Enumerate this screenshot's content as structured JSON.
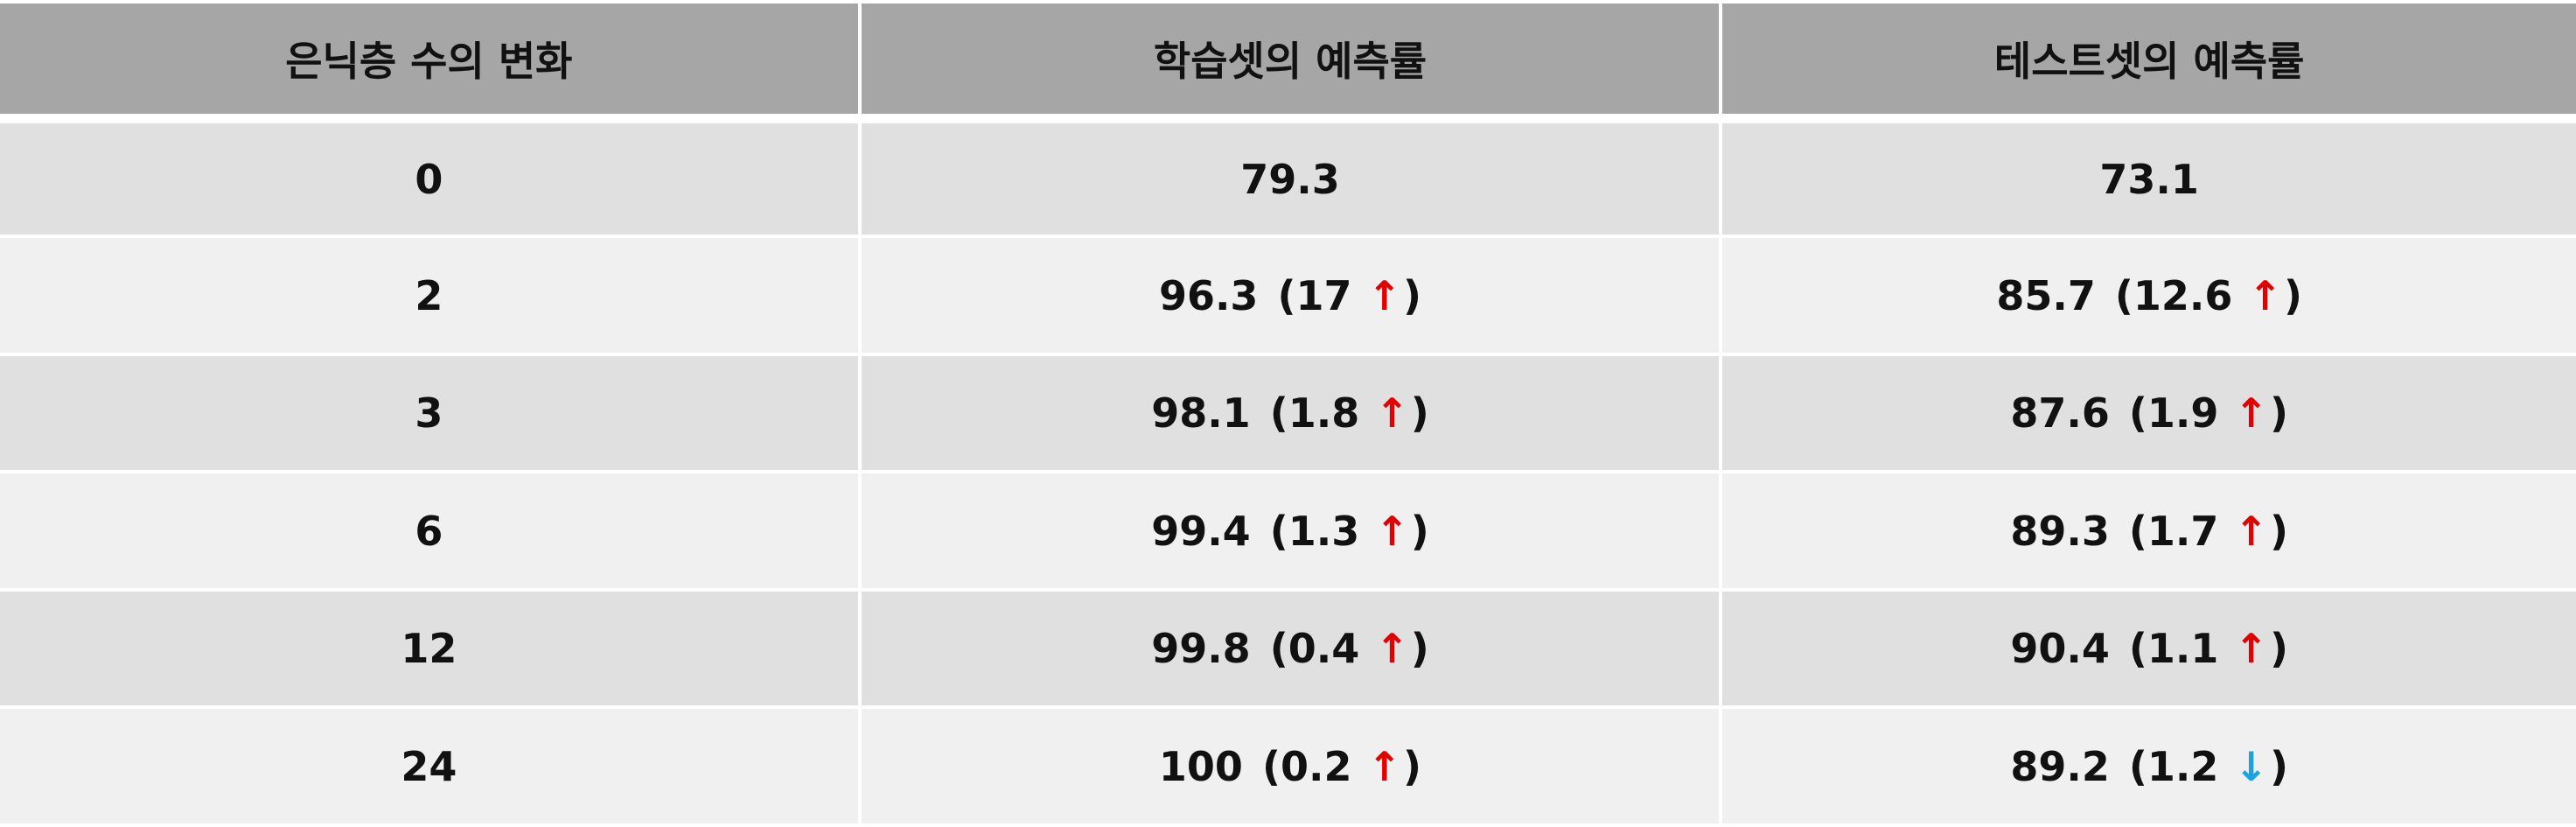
{
  "table": {
    "headers": [
      "은닉층 수의 변화",
      "학습셋의 예측률",
      "테스트셋의 예측률"
    ],
    "rows": [
      {
        "layers": "0",
        "train": {
          "value": "79.3",
          "delta": "",
          "dir": ""
        },
        "test": {
          "value": "73.1",
          "delta": "",
          "dir": ""
        }
      },
      {
        "layers": "2",
        "train": {
          "value": "96.3",
          "delta": "17",
          "dir": "up"
        },
        "test": {
          "value": "85.7",
          "delta": "12.6",
          "dir": "up"
        }
      },
      {
        "layers": "3",
        "train": {
          "value": "98.1",
          "delta": "1.8",
          "dir": "up"
        },
        "test": {
          "value": "87.6",
          "delta": "1.9",
          "dir": "up"
        }
      },
      {
        "layers": "6",
        "train": {
          "value": "99.4",
          "delta": "1.3",
          "dir": "up"
        },
        "test": {
          "value": "89.3",
          "delta": "1.7",
          "dir": "up"
        }
      },
      {
        "layers": "12",
        "train": {
          "value": "99.8",
          "delta": "0.4",
          "dir": "up"
        },
        "test": {
          "value": "90.4",
          "delta": "1.1",
          "dir": "up"
        }
      },
      {
        "layers": "24",
        "train": {
          "value": "100",
          "delta": "0.2",
          "dir": "up"
        },
        "test": {
          "value": "89.2",
          "delta": "1.2",
          "dir": "down"
        }
      }
    ],
    "colors": {
      "header_bg": "#a6a6a6",
      "row_dark": "#e0e0e0",
      "row_light": "#f0f0f0",
      "arrow_up": "#e30000",
      "arrow_down": "#1aa3e0"
    }
  }
}
